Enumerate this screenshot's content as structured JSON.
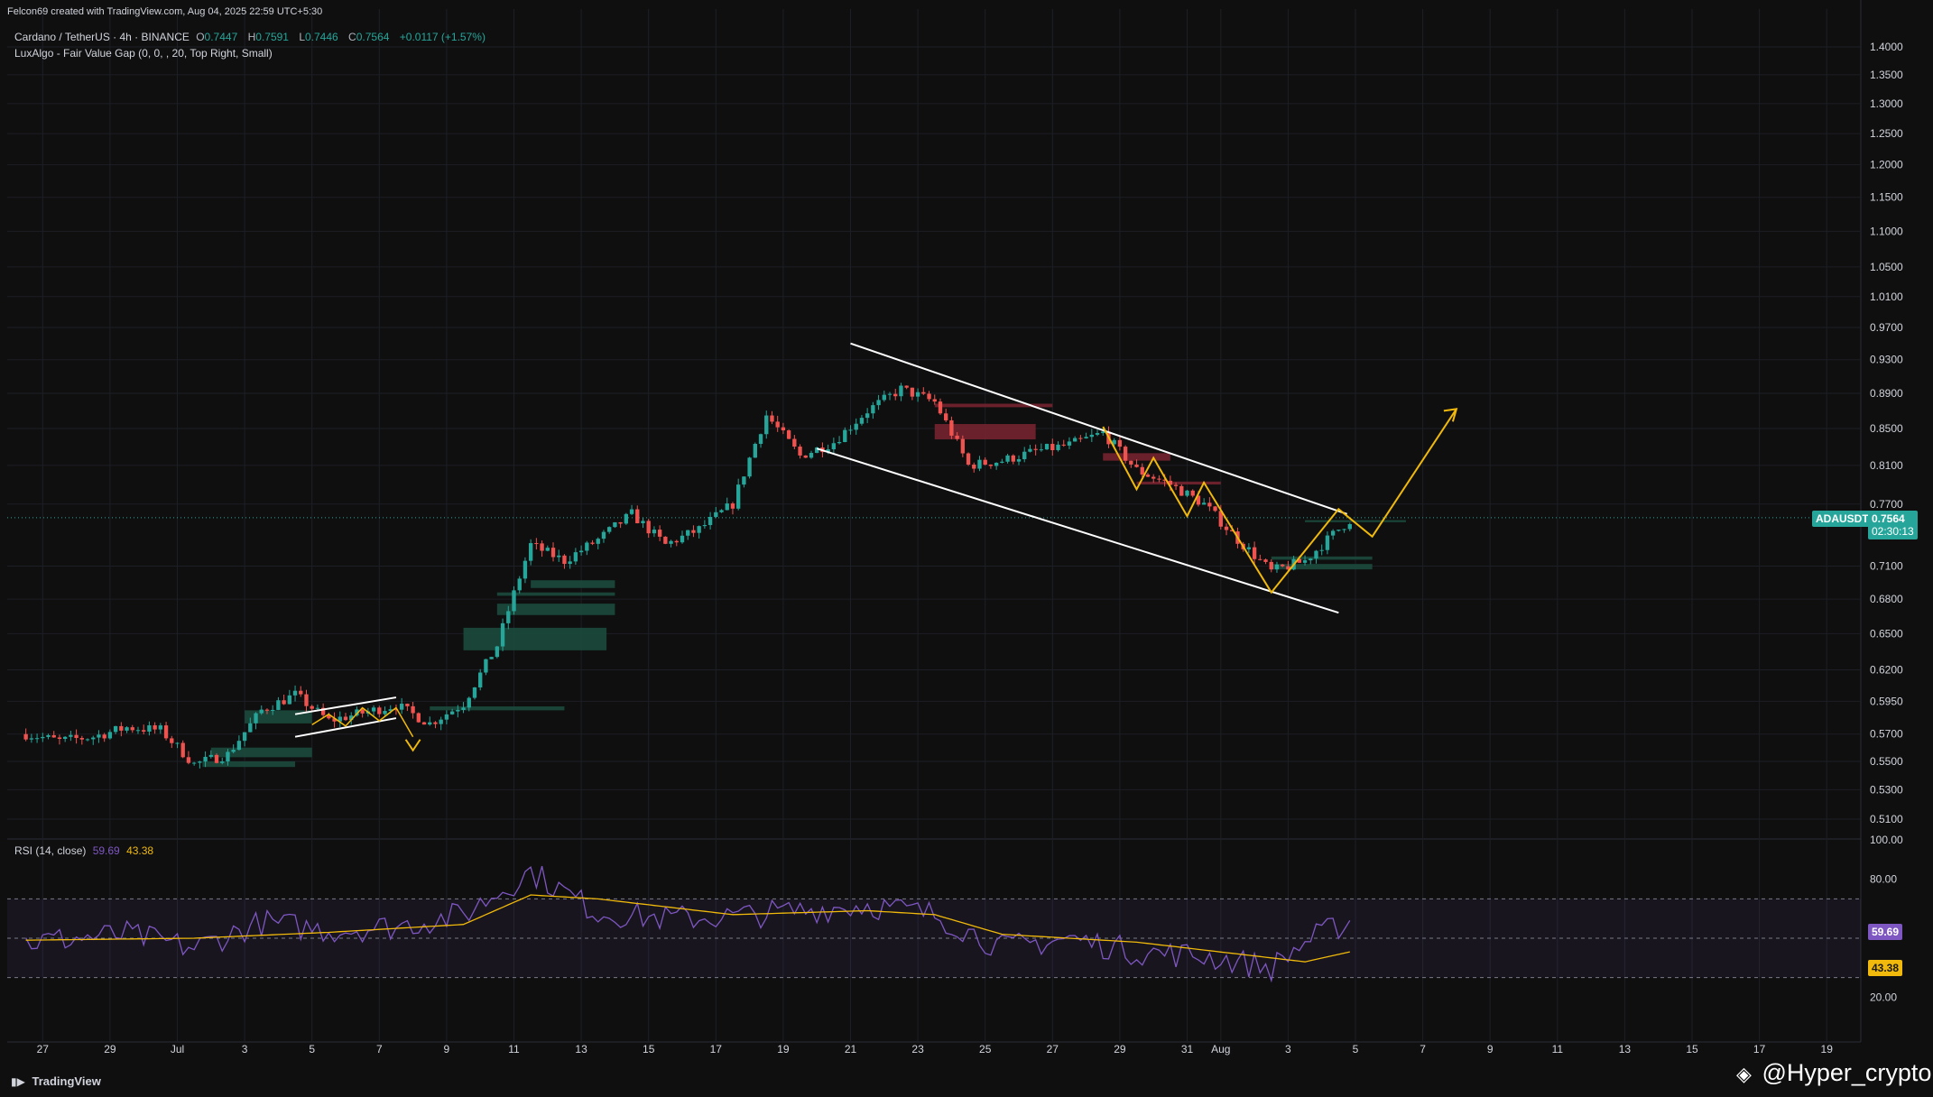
{
  "header": {
    "author_line": "Felcon69 created with TradingView.com, Aug 04, 2025 22:59 UTC+5:30",
    "symbol_line": "Cardano / TetherUS · 4h · BINANCE",
    "ohlc": {
      "o_label": "O",
      "o": "0.7447",
      "h_label": "H",
      "h": "0.7591",
      "l_label": "L",
      "l": "0.7446",
      "c_label": "C",
      "c": "0.7564",
      "change": "+0.0117 (+1.57%)"
    },
    "indicator_line": "LuxAlgo - Fair Value Gap (0, 0, , 20, Top Right, Small)"
  },
  "rsi_header": {
    "label": "RSI (14, close)",
    "rsi": "59.69",
    "ma": "43.38"
  },
  "price_badge": {
    "symbol": "ADAUSDT",
    "price": "0.7564",
    "countdown": "02:30:13"
  },
  "rsi_badges": {
    "rsi": "59.69",
    "ma": "43.38"
  },
  "footer": {
    "logo": "TradingView",
    "watermark": "@Hyper_crypto"
  },
  "colors": {
    "bg": "#0f0f0f",
    "up": "#26a69a",
    "down": "#ef5350",
    "fvg_up": "#1b4d3e",
    "fvg_down": "#7a2530",
    "rsi": "#7e57c2",
    "rsi_ma": "#f0b90b",
    "pattern": "#f0b90b",
    "channel": "#ffffff"
  },
  "chart_data": {
    "type": "candlestick",
    "price_axis": {
      "ticks": [
        "1.4000",
        "1.3500",
        "1.3000",
        "1.2500",
        "1.2000",
        "1.1500",
        "1.1000",
        "1.0500",
        "1.0100",
        "0.9700",
        "0.9300",
        "0.8900",
        "0.8500",
        "0.8100",
        "0.7700",
        "0.7100",
        "0.6800",
        "0.6500",
        "0.6200",
        "0.5950",
        "0.5700",
        "0.5500",
        "0.5300",
        "0.5100"
      ],
      "scale": "log",
      "range": [
        0.495,
        1.43
      ]
    },
    "rsi_axis": {
      "ticks": [
        "100.00",
        "80.00",
        "20.00"
      ],
      "range": [
        0,
        100
      ],
      "bands": [
        30,
        50,
        70
      ]
    },
    "x_ticks": [
      "27",
      "29",
      "Jul",
      "3",
      "5",
      "7",
      "9",
      "11",
      "13",
      "15",
      "17",
      "19",
      "21",
      "23",
      "25",
      "27",
      "29",
      "31",
      "Aug",
      "3",
      "5",
      "7",
      "9",
      "11",
      "13",
      "15",
      "17",
      "19"
    ],
    "close_path": [
      [
        "Jun 26",
        0.57
      ],
      [
        "Jun 27",
        0.565
      ],
      [
        "Jun 28",
        0.568
      ],
      [
        "Jun 29",
        0.575
      ],
      [
        "Jun 30",
        0.573
      ],
      [
        "Jul 1",
        0.548
      ],
      [
        "Jul 2",
        0.555
      ],
      [
        "Jul 3",
        0.588
      ],
      [
        "Jul 4",
        0.6
      ],
      [
        "Jul 5",
        0.58
      ],
      [
        "Jul 6",
        0.586
      ],
      [
        "Jul 7",
        0.592
      ],
      [
        "Jul 8",
        0.578
      ],
      [
        "Jul 9",
        0.593
      ],
      [
        "Jul 10",
        0.64
      ],
      [
        "Jul 11",
        0.73
      ],
      [
        "Jul 12",
        0.715
      ],
      [
        "Jul 13",
        0.735
      ],
      [
        "Jul 14",
        0.76
      ],
      [
        "Jul 15",
        0.73
      ],
      [
        "Jul 16",
        0.745
      ],
      [
        "Jul 17",
        0.77
      ],
      [
        "Jul 18",
        0.865
      ],
      [
        "Jul 19",
        0.82
      ],
      [
        "Jul 20",
        0.835
      ],
      [
        "Jul 21",
        0.87
      ],
      [
        "Jul 22",
        0.895
      ],
      [
        "Jul 23",
        0.88
      ],
      [
        "Jul 24",
        0.81
      ],
      [
        "Jul 25",
        0.815
      ],
      [
        "Jul 26",
        0.825
      ],
      [
        "Jul 27",
        0.832
      ],
      [
        "Jul 28",
        0.845
      ],
      [
        "Jul 29",
        0.805
      ],
      [
        "Jul 30",
        0.79
      ],
      [
        "Jul 31",
        0.77
      ],
      [
        "Aug 1",
        0.735
      ],
      [
        "Aug 2",
        0.705
      ],
      [
        "Aug 3",
        0.715
      ],
      [
        "Aug 4",
        0.745
      ],
      [
        "Aug 4 22:00",
        0.7564
      ]
    ],
    "rsi_values": [
      [
        "Jun 26",
        48
      ],
      [
        "Jun 29",
        52
      ],
      [
        "Jul 1",
        45
      ],
      [
        "Jul 3",
        58
      ],
      [
        "Jul 5",
        54
      ],
      [
        "Jul 7",
        56
      ],
      [
        "Jul 9",
        62
      ],
      [
        "Jul 11",
        84
      ],
      [
        "Jul 13",
        63
      ],
      [
        "Jul 15",
        60
      ],
      [
        "Jul 17",
        61
      ],
      [
        "Jul 19",
        64
      ],
      [
        "Jul 21",
        67
      ],
      [
        "Jul 23",
        62
      ],
      [
        "Jul 25",
        45
      ],
      [
        "Jul 27",
        50
      ],
      [
        "Jul 29",
        43
      ],
      [
        "Jul 31",
        41
      ],
      [
        "Aug 2",
        35
      ],
      [
        "Aug 3",
        48
      ],
      [
        "Aug 4 22:00",
        59.69
      ]
    ],
    "rsi_ma_values": [
      [
        "Jun 26",
        49
      ],
      [
        "Jul 1",
        50
      ],
      [
        "Jul 5",
        53
      ],
      [
        "Jul 9",
        57
      ],
      [
        "Jul 11",
        72
      ],
      [
        "Jul 13",
        70
      ],
      [
        "Jul 17",
        62
      ],
      [
        "Jul 21",
        64
      ],
      [
        "Jul 23",
        62
      ],
      [
        "Jul 25",
        52
      ],
      [
        "Jul 29",
        48
      ],
      [
        "Aug 1",
        42
      ],
      [
        "Aug 3",
        38
      ],
      [
        "Aug 4 22:00",
        43.38
      ]
    ]
  }
}
